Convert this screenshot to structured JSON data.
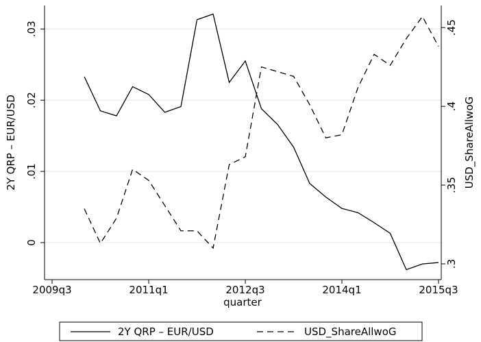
{
  "chart_data": {
    "type": "line",
    "x_label": "quarter",
    "y_label": "2Y QRP – EUR/USD",
    "y2_label": "USD_ShareAllwoG",
    "x": [
      200,
      201,
      202,
      203,
      204,
      205,
      206,
      207,
      208,
      209,
      210,
      211,
      212,
      213,
      214,
      215,
      216,
      217,
      218,
      219,
      220,
      221,
      222
    ],
    "xlim": [
      197.53,
      222.17
    ],
    "xticks": [
      {
        "value": 198,
        "label": "2009q3"
      },
      {
        "value": 204,
        "label": "2011q1"
      },
      {
        "value": 210,
        "label": "2012q3"
      },
      {
        "value": 216,
        "label": "2014q1"
      },
      {
        "value": 222,
        "label": "2015q3"
      }
    ],
    "ylim": [
      -0.0052,
      0.0333
    ],
    "yticks": [
      0,
      {
        "value": 0.01,
        "label": ".01"
      },
      {
        "value": 0.02,
        "label": ".02"
      },
      {
        "value": 0.03,
        "label": ".03"
      }
    ],
    "y2lim": [
      0.29,
      0.464
    ],
    "y2ticks": [
      {
        "value": 0.3,
        "label": ".3"
      },
      {
        "value": 0.35,
        "label": ".35"
      },
      {
        "value": 0.4,
        "label": ".4"
      },
      {
        "value": 0.45,
        "label": ".45"
      }
    ],
    "grid": true,
    "legend_position": "bottom",
    "series": [
      {
        "name": "2Y QRP – EUR/USD",
        "color": "#000000",
        "line_style": "solid",
        "values": [
          0.0233,
          0.0185,
          0.0178,
          0.0219,
          0.0208,
          0.0183,
          0.0191,
          0.0313,
          0.0321,
          0.0225,
          0.0255,
          0.0188,
          0.0166,
          0.0134,
          0.0083,
          0.0064,
          0.0048,
          0.0042,
          0.0028,
          0.0013,
          -0.0038,
          -0.003,
          -0.0028
        ]
      },
      {
        "name": "USD_ShareAllwoG",
        "color": "#000000",
        "line_style": "dashed",
        "axis": "y2",
        "values": [
          0.335,
          0.313,
          0.329,
          0.36,
          0.353,
          0.337,
          0.321,
          0.321,
          0.31,
          0.363,
          0.368,
          0.425,
          0.422,
          0.419,
          0.401,
          0.38,
          0.382,
          0.412,
          0.433,
          0.426,
          0.443,
          0.457,
          0.438
        ]
      }
    ]
  }
}
